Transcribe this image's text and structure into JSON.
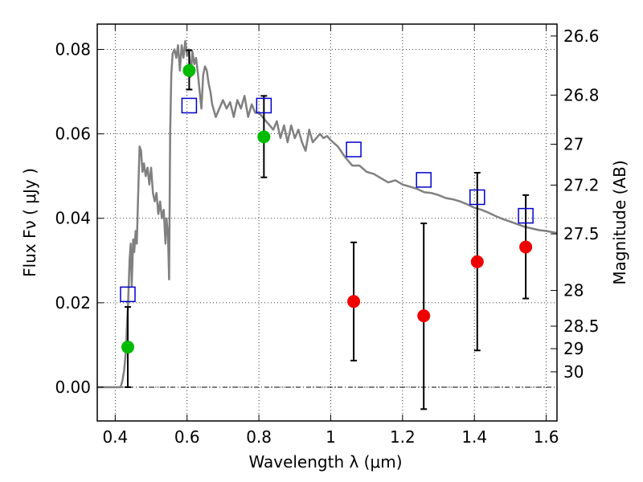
{
  "chart_data": {
    "type": "scatter",
    "xlabel": "Wavelength  λ (μm)",
    "ylabel": "Flux  Fν  ( μJy )",
    "y2label": "Magnitude (AB)",
    "xlim": [
      0.35,
      1.63
    ],
    "ylim": [
      -0.008,
      0.086
    ],
    "x_ticks": [
      0.4,
      0.6,
      0.8,
      1.0,
      1.2,
      1.4,
      1.6
    ],
    "x_tick_labels": [
      "0.4",
      "0.6",
      "0.8",
      "1",
      "1.2",
      "1.4",
      "1.6"
    ],
    "y_ticks": [
      0.0,
      0.02,
      0.04,
      0.06,
      0.08
    ],
    "y_tick_labels": [
      "0.00",
      "0.02",
      "0.04",
      "0.06",
      "0.08"
    ],
    "mag_ticks": [
      26.6,
      26.8,
      27,
      27.2,
      27.5,
      28,
      28.5,
      29,
      30
    ],
    "mag_tick_labels": [
      "26.6",
      "26.8",
      "27",
      "27.2",
      "27.5",
      "28",
      "28.5",
      "29",
      "30"
    ],
    "grid": true,
    "colors": {
      "green": "#00bb00",
      "red": "#ee0000",
      "square": "#0000cc",
      "sed": "#808080",
      "errorbar": "#000000"
    },
    "series": [
      {
        "marker": "circle-green",
        "points": [
          {
            "x": 0.435,
            "y": 0.0095,
            "ylow": 0.0,
            "yhigh": 0.019
          },
          {
            "x": 0.606,
            "y": 0.075,
            "ylow": 0.0705,
            "yhigh": 0.0798
          },
          {
            "x": 0.814,
            "y": 0.0593,
            "ylow": 0.0497,
            "yhigh": 0.069
          }
        ]
      },
      {
        "marker": "circle-red",
        "points": [
          {
            "x": 1.064,
            "y": 0.0203,
            "ylow": 0.0063,
            "yhigh": 0.0343
          },
          {
            "x": 1.259,
            "y": 0.0169,
            "ylow": -0.0052,
            "yhigh": 0.0388
          },
          {
            "x": 1.408,
            "y": 0.0297,
            "ylow": 0.0087,
            "yhigh": 0.0508
          },
          {
            "x": 1.543,
            "y": 0.0332,
            "ylow": 0.021,
            "yhigh": 0.0455
          }
        ]
      },
      {
        "marker": "square-blue",
        "points": [
          {
            "x": 0.435,
            "y": 0.022
          },
          {
            "x": 0.606,
            "y": 0.0667
          },
          {
            "x": 0.814,
            "y": 0.0667
          },
          {
            "x": 1.064,
            "y": 0.0563
          },
          {
            "x": 1.259,
            "y": 0.0491
          },
          {
            "x": 1.408,
            "y": 0.045
          },
          {
            "x": 1.543,
            "y": 0.0406
          }
        ]
      },
      {
        "marker": "line-gray",
        "x": [
          0.35,
          0.4,
          0.405,
          0.41,
          0.415,
          0.42,
          0.425,
          0.43,
          0.433,
          0.436,
          0.438,
          0.44,
          0.443,
          0.446,
          0.45,
          0.453,
          0.457,
          0.46,
          0.465,
          0.468,
          0.472,
          0.476,
          0.48,
          0.485,
          0.49,
          0.495,
          0.5,
          0.505,
          0.51,
          0.515,
          0.52,
          0.525,
          0.53,
          0.535,
          0.54,
          0.543,
          0.547,
          0.55,
          0.553,
          0.556,
          0.56,
          0.565,
          0.57,
          0.575,
          0.58,
          0.585,
          0.59,
          0.595,
          0.6,
          0.605,
          0.61,
          0.615,
          0.62,
          0.625,
          0.63,
          0.635,
          0.64,
          0.645,
          0.65,
          0.655,
          0.66,
          0.665,
          0.67,
          0.68,
          0.69,
          0.7,
          0.71,
          0.72,
          0.73,
          0.74,
          0.75,
          0.76,
          0.77,
          0.78,
          0.79,
          0.8,
          0.81,
          0.82,
          0.83,
          0.84,
          0.85,
          0.86,
          0.87,
          0.88,
          0.89,
          0.9,
          0.91,
          0.92,
          0.93,
          0.94,
          0.95,
          0.96,
          0.97,
          0.98,
          0.99,
          1.0,
          1.02,
          1.04,
          1.06,
          1.08,
          1.1,
          1.12,
          1.14,
          1.16,
          1.18,
          1.2,
          1.22,
          1.24,
          1.26,
          1.28,
          1.3,
          1.32,
          1.34,
          1.36,
          1.38,
          1.4,
          1.42,
          1.44,
          1.46,
          1.48,
          1.5,
          1.52,
          1.54,
          1.56,
          1.58,
          1.6,
          1.63
        ],
        "y": [
          0.0,
          0.0,
          0.0,
          0.0,
          0.0,
          0.0015,
          0.004,
          0.009,
          0.015,
          0.02,
          0.025,
          0.03,
          0.034,
          0.024,
          0.035,
          0.032,
          0.037,
          0.034,
          0.049,
          0.057,
          0.056,
          0.051,
          0.053,
          0.05,
          0.052,
          0.048,
          0.052,
          0.046,
          0.044,
          0.046,
          0.041,
          0.044,
          0.04,
          0.042,
          0.034,
          0.04,
          0.036,
          0.0255,
          0.06,
          0.074,
          0.079,
          0.08,
          0.078,
          0.081,
          0.075,
          0.081,
          0.078,
          0.082,
          0.0785,
          0.08,
          0.0735,
          0.0795,
          0.0765,
          0.078,
          0.0745,
          0.07,
          0.066,
          0.074,
          0.076,
          0.075,
          0.072,
          0.07,
          0.067,
          0.064,
          0.066,
          0.068,
          0.066,
          0.0675,
          0.064,
          0.068,
          0.066,
          0.069,
          0.064,
          0.067,
          0.065,
          0.065,
          0.064,
          0.063,
          0.062,
          0.061,
          0.063,
          0.059,
          0.062,
          0.058,
          0.062,
          0.059,
          0.061,
          0.058,
          0.056,
          0.061,
          0.058,
          0.059,
          0.06,
          0.059,
          0.0595,
          0.0585,
          0.057,
          0.0545,
          0.0525,
          0.0525,
          0.051,
          0.0505,
          0.0495,
          0.0485,
          0.049,
          0.048,
          0.0475,
          0.047,
          0.0462,
          0.046,
          0.0455,
          0.0448,
          0.0445,
          0.044,
          0.0433,
          0.0425,
          0.042,
          0.0413,
          0.0405,
          0.0398,
          0.0392,
          0.0386,
          0.038,
          0.0376,
          0.0372,
          0.037,
          0.0365
        ]
      }
    ]
  }
}
